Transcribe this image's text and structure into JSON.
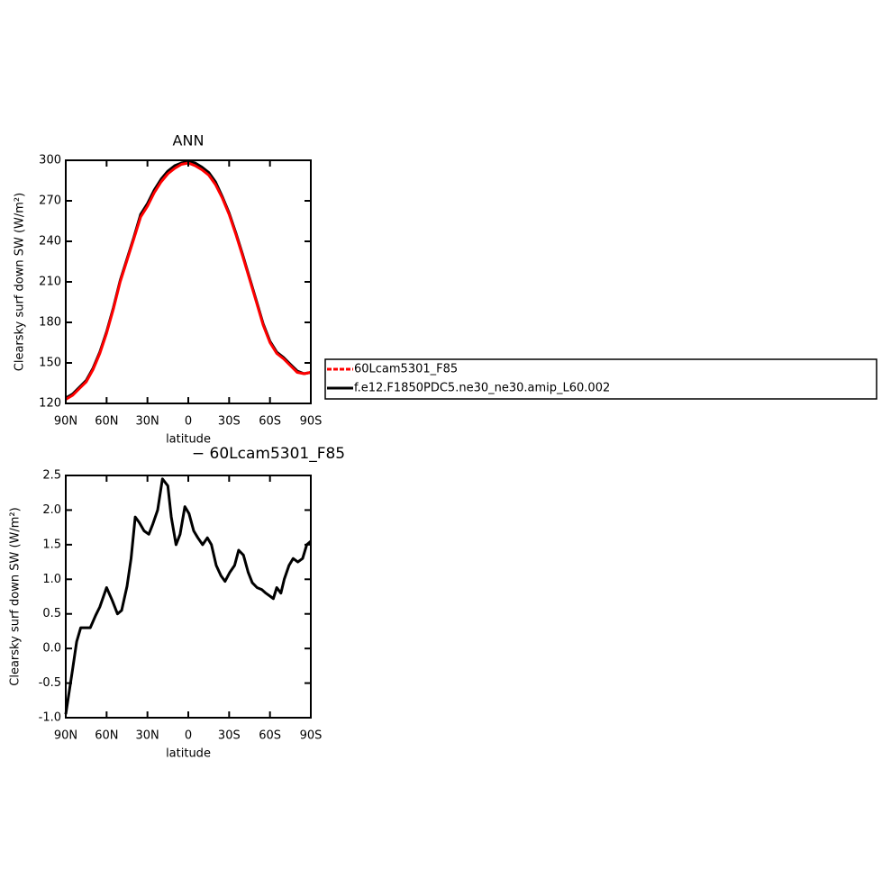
{
  "chart_data": [
    {
      "type": "line",
      "title": "ANN",
      "xlabel": "latitude",
      "ylabel": "Clearsky surf down SW (W/m²)",
      "x": [
        90,
        85,
        80,
        75,
        70,
        65,
        60,
        55,
        50,
        45,
        40,
        35,
        30,
        25,
        20,
        15,
        10,
        5,
        0,
        -5,
        -10,
        -15,
        -20,
        -25,
        -30,
        -35,
        -40,
        -45,
        -50,
        -55,
        -60,
        -65,
        -70,
        -75,
        -80,
        -85,
        -90
      ],
      "series": [
        {
          "name": "f.e12.F1850PDC5.ne30_ne30.amip_L60.002",
          "color": "#000000",
          "values": [
            124,
            127,
            132,
            137,
            146,
            158,
            173,
            191,
            211,
            227,
            243,
            260,
            268,
            278,
            286,
            292,
            296,
            298,
            299,
            298,
            295,
            291,
            284,
            273,
            261,
            246,
            230,
            213,
            196,
            179,
            166,
            158,
            154,
            149,
            144,
            142,
            143
          ]
        },
        {
          "name": "60Lcam5301_F85",
          "color": "#ff0000",
          "values": [
            123,
            126,
            131,
            136,
            145,
            157,
            172,
            190,
            210,
            226,
            242,
            258,
            266,
            276,
            284,
            290,
            294,
            297,
            298,
            296,
            293,
            289,
            282,
            272,
            260,
            245,
            229,
            212,
            195,
            178,
            165,
            157,
            153,
            148,
            143,
            142,
            143
          ]
        }
      ],
      "xlim": [
        90,
        -90
      ],
      "ylim": [
        120,
        300
      ],
      "xticks": [
        {
          "value": 90,
          "label": "90N"
        },
        {
          "value": 60,
          "label": "60N"
        },
        {
          "value": 30,
          "label": "30N"
        },
        0,
        {
          "value": -30,
          "label": "30S"
        },
        {
          "value": -60,
          "label": "60S"
        },
        {
          "value": -90,
          "label": "90S"
        }
      ],
      "yticks": [
        120,
        150,
        180,
        210,
        240,
        270,
        300
      ],
      "legend": "outside-right"
    },
    {
      "type": "line",
      "title": "− 60Lcam5301_F85",
      "xlabel": "latitude",
      "ylabel": "Clearsky surf down SW (W/m²)",
      "x": [
        90,
        85,
        82,
        79,
        75,
        72,
        68,
        65,
        60,
        56,
        52,
        49,
        45,
        42,
        39,
        36,
        32.5,
        29,
        26,
        22.5,
        19,
        15,
        12.5,
        9,
        6,
        2.5,
        -0.5,
        -4,
        -7,
        -10.5,
        -14,
        -17,
        -20.5,
        -24,
        -27,
        -30.5,
        -34,
        -37,
        -40.5,
        -44,
        -47,
        -50.5,
        -54,
        -57,
        -60.5,
        -62.5,
        -65,
        -68,
        -70.5,
        -74,
        -77,
        -80.5,
        -84,
        -87,
        -90
      ],
      "series": [
        {
          "color": "#000000",
          "values": [
            -0.95,
            -0.3,
            0.1,
            0.3,
            0.3,
            0.3,
            0.48,
            0.6,
            0.88,
            0.7,
            0.5,
            0.55,
            0.9,
            1.3,
            1.9,
            1.82,
            1.7,
            1.65,
            1.8,
            2.0,
            2.45,
            2.35,
            1.9,
            1.5,
            1.65,
            2.05,
            1.95,
            1.7,
            1.6,
            1.5,
            1.6,
            1.5,
            1.2,
            1.05,
            0.97,
            1.1,
            1.2,
            1.42,
            1.35,
            1.1,
            0.95,
            0.88,
            0.85,
            0.8,
            0.75,
            0.72,
            0.88,
            0.8,
            1.0,
            1.2,
            1.3,
            1.25,
            1.3,
            1.5,
            1.55
          ]
        }
      ],
      "xlim": [
        90,
        -90
      ],
      "ylim": [
        -1.0,
        2.5
      ],
      "xticks": [
        {
          "value": 90,
          "label": "90N"
        },
        {
          "value": 60,
          "label": "60N"
        },
        {
          "value": 30,
          "label": "30N"
        },
        0,
        {
          "value": -30,
          "label": "30S"
        },
        {
          "value": -60,
          "label": "60S"
        },
        {
          "value": -90,
          "label": "90S"
        }
      ],
      "yticks": [
        {
          "value": -1.0,
          "label": "-1.0"
        },
        -0.5,
        {
          "value": 0.0,
          "label": "0.0"
        },
        0.5,
        {
          "value": 1.0,
          "label": "1.0"
        },
        1.5,
        {
          "value": 2.0,
          "label": "2.0"
        },
        2.5
      ]
    }
  ]
}
